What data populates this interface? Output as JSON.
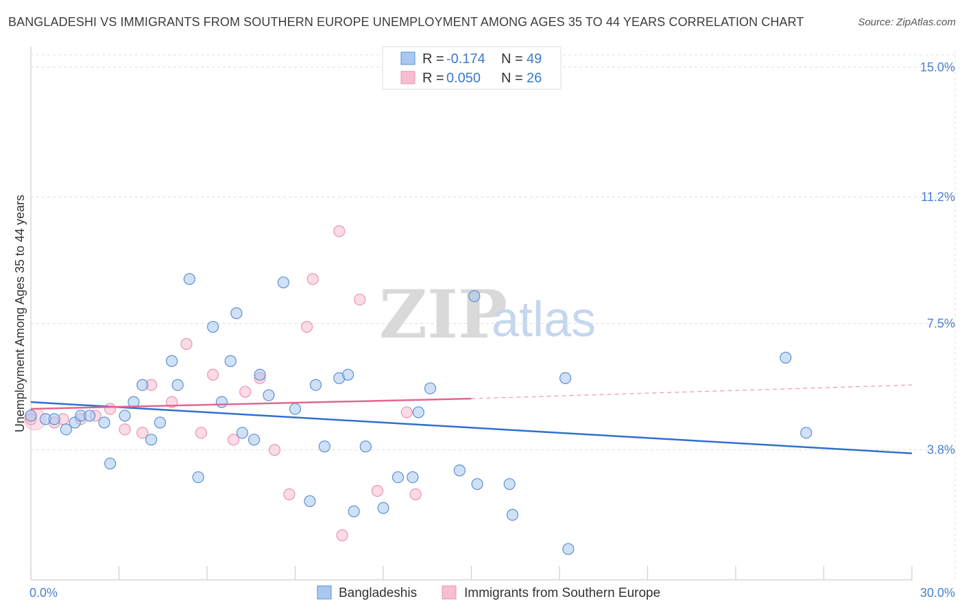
{
  "title": "BANGLADESHI VS IMMIGRANTS FROM SOUTHERN EUROPE UNEMPLOYMENT AMONG AGES 35 TO 44 YEARS CORRELATION CHART",
  "source": "Source: ZipAtlas.com",
  "watermark": {
    "zip": "ZIP",
    "atlas": "atlas"
  },
  "legend_top": {
    "rows": [
      {
        "r_label": "R = ",
        "r_value": "-0.174",
        "n_label": "N = ",
        "n_value": "49"
      },
      {
        "r_label": "R = ",
        "r_value": "0.050",
        "n_label": "N = ",
        "n_value": "26"
      }
    ]
  },
  "legend_bottom": {
    "items": [
      "Bangladeshis",
      "Immigrants from Southern Europe"
    ]
  },
  "chart_data": {
    "type": "scatter",
    "title": "BANGLADESHI VS IMMIGRANTS FROM SOUTHERN EUROPE UNEMPLOYMENT AMONG AGES 35 TO 44 YEARS CORRELATION CHART",
    "xlabel": "",
    "ylabel": "Unemployment Among Ages 35 to 44 years",
    "xlim": [
      0,
      30
    ],
    "ylim": [
      0,
      15.5
    ],
    "x_tick_labels": [
      "0.0%",
      "30.0%"
    ],
    "y_ticks": [
      3.8,
      7.5,
      11.2,
      15.0
    ],
    "y_tick_labels": [
      "3.8%",
      "7.5%",
      "11.2%",
      "15.0%"
    ],
    "grid": true,
    "legend_position": "top-center",
    "colors": {
      "bangladeshi_fill": "#a9c8ef",
      "bangladeshi_stroke": "#5b8fd6",
      "bangladeshi_line": "#2f6fd0",
      "europe_fill": "#f7bdd0",
      "europe_stroke": "#e894b0",
      "europe_line": "#e2668f",
      "tick_text": "#4a7fd0"
    },
    "series": [
      {
        "name": "Bangladeshis",
        "r": -0.174,
        "n": 49,
        "points": [
          [
            0.0,
            4.8
          ],
          [
            0.5,
            4.7
          ],
          [
            0.8,
            4.7
          ],
          [
            1.2,
            4.4
          ],
          [
            1.5,
            4.6
          ],
          [
            1.7,
            4.8
          ],
          [
            2.0,
            4.8
          ],
          [
            2.5,
            4.6
          ],
          [
            2.7,
            3.4
          ],
          [
            3.2,
            4.8
          ],
          [
            3.5,
            5.2
          ],
          [
            3.8,
            5.7
          ],
          [
            4.1,
            4.1
          ],
          [
            4.4,
            4.6
          ],
          [
            4.8,
            6.4
          ],
          [
            5.0,
            5.7
          ],
          [
            5.4,
            8.8
          ],
          [
            5.7,
            3.0
          ],
          [
            6.2,
            7.4
          ],
          [
            6.5,
            5.2
          ],
          [
            6.8,
            6.4
          ],
          [
            7.0,
            7.8
          ],
          [
            7.2,
            4.3
          ],
          [
            7.6,
            4.1
          ],
          [
            7.8,
            6.0
          ],
          [
            8.1,
            5.4
          ],
          [
            8.6,
            8.7
          ],
          [
            9.0,
            5.0
          ],
          [
            9.5,
            2.3
          ],
          [
            9.7,
            5.7
          ],
          [
            10.0,
            3.9
          ],
          [
            10.5,
            5.9
          ],
          [
            10.8,
            6.0
          ],
          [
            11.0,
            2.0
          ],
          [
            11.4,
            3.9
          ],
          [
            12.0,
            2.1
          ],
          [
            12.5,
            3.0
          ],
          [
            13.0,
            3.0
          ],
          [
            13.2,
            4.9
          ],
          [
            13.6,
            5.6
          ],
          [
            14.6,
            3.2
          ],
          [
            15.1,
            8.3
          ],
          [
            15.2,
            2.8
          ],
          [
            16.3,
            2.8
          ],
          [
            16.4,
            1.9
          ],
          [
            18.2,
            5.9
          ],
          [
            18.3,
            0.9
          ],
          [
            25.7,
            6.5
          ],
          [
            26.4,
            4.3
          ]
        ],
        "trend": [
          [
            0,
            5.2
          ],
          [
            30,
            3.7
          ]
        ]
      },
      {
        "name": "Immigrants from Southern Europe",
        "r": 0.05,
        "n": 26,
        "points": [
          [
            0.0,
            4.7
          ],
          [
            0.8,
            4.6
          ],
          [
            1.1,
            4.7
          ],
          [
            1.7,
            4.7
          ],
          [
            2.2,
            4.8
          ],
          [
            2.7,
            5.0
          ],
          [
            3.2,
            4.4
          ],
          [
            3.8,
            4.3
          ],
          [
            4.1,
            5.7
          ],
          [
            4.8,
            5.2
          ],
          [
            5.3,
            6.9
          ],
          [
            5.8,
            4.3
          ],
          [
            6.2,
            6.0
          ],
          [
            6.9,
            4.1
          ],
          [
            7.3,
            5.5
          ],
          [
            7.8,
            5.9
          ],
          [
            8.3,
            3.8
          ],
          [
            8.8,
            2.5
          ],
          [
            9.4,
            7.4
          ],
          [
            9.6,
            8.8
          ],
          [
            10.5,
            10.2
          ],
          [
            10.6,
            1.3
          ],
          [
            11.2,
            8.2
          ],
          [
            11.8,
            2.6
          ],
          [
            12.8,
            4.9
          ],
          [
            13.1,
            2.5
          ]
        ],
        "trend_solid": [
          [
            0,
            5.0
          ],
          [
            15.0,
            5.3
          ]
        ],
        "trend_dashed": [
          [
            15.0,
            5.3
          ],
          [
            30,
            5.7
          ]
        ]
      }
    ]
  }
}
